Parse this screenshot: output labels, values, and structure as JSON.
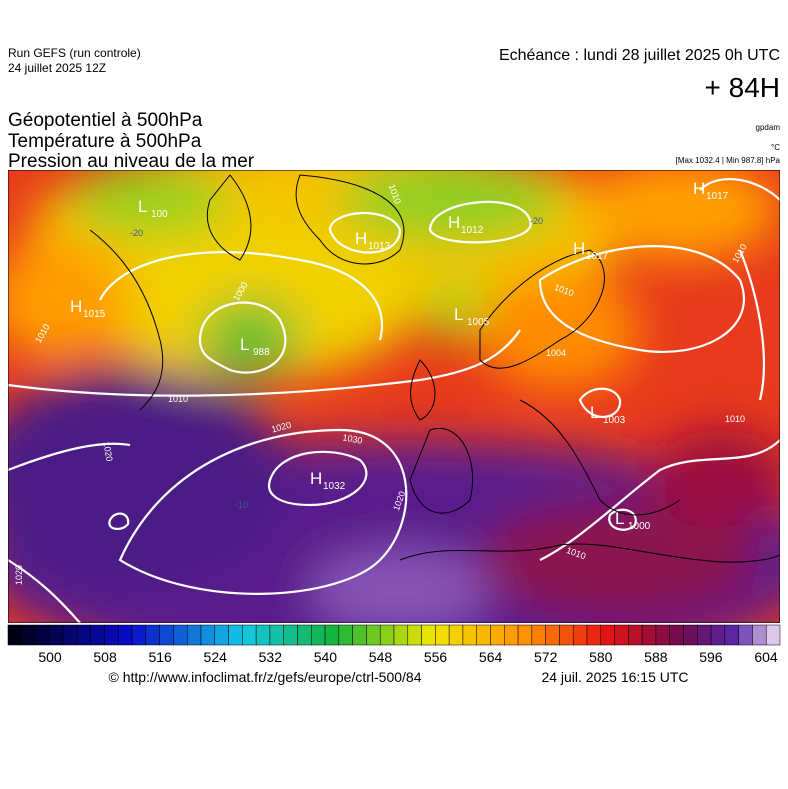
{
  "header": {
    "run": "Run GEFS (run controle)",
    "run_date": "24 juillet 2025 12Z",
    "echeance": "Echéance : lundi 28 juillet 2025 0h UTC",
    "lead": "+ 84H",
    "titles": [
      "Géopotentiel à 500hPa",
      "Température à 500hPa",
      "Pression au niveau de la mer"
    ],
    "units": [
      "gpdam",
      "°C",
      "[Max 1032.4 | Min 987.8] hPa"
    ]
  },
  "map": {
    "centers": [
      {
        "letter": "L",
        "pressure": "100"
      },
      {
        "letter": "H",
        "pressure": "1013"
      },
      {
        "letter": "H",
        "pressure": "1012"
      },
      {
        "letter": "H",
        "pressure": "1017"
      },
      {
        "letter": "H",
        "pressure": "1017"
      },
      {
        "letter": "H",
        "pressure": "1015"
      },
      {
        "letter": "L",
        "pressure": "1005"
      },
      {
        "letter": "L",
        "pressure": "988"
      },
      {
        "letter": "H",
        "pressure": "1032"
      },
      {
        "letter": "L",
        "pressure": "1003"
      },
      {
        "letter": "L",
        "pressure": "1000"
      }
    ],
    "isobar_labels": [
      "1010",
      "1010",
      "1010",
      "1020",
      "1030",
      "1020",
      "1020",
      "1020",
      "1010",
      "1010",
      "1010",
      "1010",
      "1004",
      "1000"
    ],
    "temperature_labels": [
      "-20",
      "-20",
      "-10"
    ]
  },
  "colorbar": {
    "ticks": [
      500,
      508,
      516,
      524,
      532,
      540,
      548,
      556,
      564,
      572,
      580,
      588,
      596,
      604
    ]
  },
  "footer": {
    "source": "© http://www.infoclimat.fr/z/gefs/europe/ctrl-500/84",
    "generated": "24 juil. 2025 16:15 UTC"
  }
}
